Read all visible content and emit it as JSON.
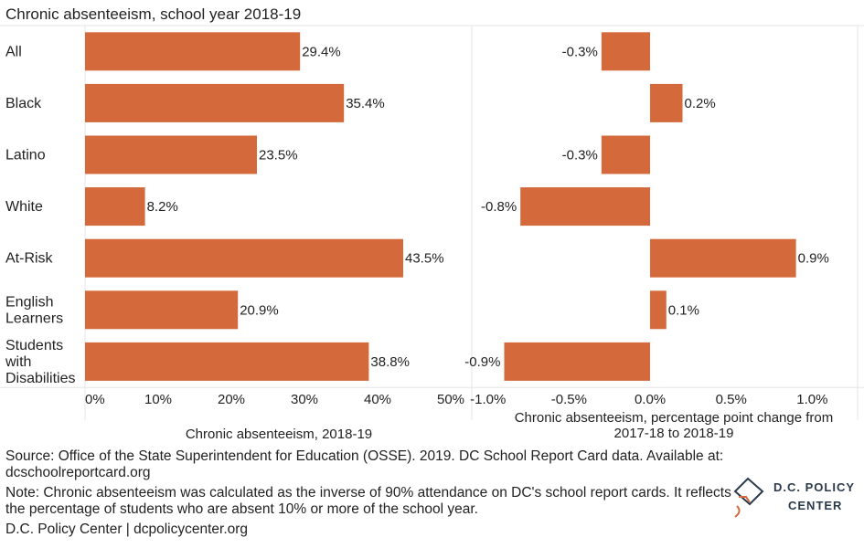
{
  "title": "Chronic absenteeism, school year 2018-19",
  "colors": {
    "bar": "#d4693b",
    "grid": "#e6e6e6",
    "logo": "#2b3a4a",
    "accent": "#d4693b"
  },
  "chart_data": [
    {
      "type": "bar",
      "orientation": "horizontal",
      "categories": [
        "All",
        "Black",
        "Latino",
        "White",
        "At-Risk",
        "English Learners",
        "Students with Disabilities"
      ],
      "category_lines": [
        [
          "All"
        ],
        [
          "Black"
        ],
        [
          "Latino"
        ],
        [
          "White"
        ],
        [
          "At-Risk"
        ],
        [
          "English",
          "Learners"
        ],
        [
          "Students",
          "with",
          "Disabilities"
        ]
      ],
      "values": [
        29.4,
        35.4,
        23.5,
        8.2,
        43.5,
        20.9,
        38.8
      ],
      "value_labels": [
        "29.4%",
        "35.4%",
        "23.5%",
        "8.2%",
        "43.5%",
        "20.9%",
        "38.8%"
      ],
      "xlabel": "Chronic absenteeism, 2018-19",
      "xlim": [
        0,
        50
      ],
      "ticks": [
        0,
        10,
        20,
        30,
        40,
        50
      ],
      "tick_labels": [
        "0%",
        "10%",
        "20%",
        "30%",
        "40%",
        "50%"
      ]
    },
    {
      "type": "bar",
      "orientation": "horizontal",
      "categories": [
        "All",
        "Black",
        "Latino",
        "White",
        "At-Risk",
        "English Learners",
        "Students with Disabilities"
      ],
      "values": [
        -0.3,
        0.2,
        -0.3,
        -0.8,
        0.9,
        0.1,
        -0.9
      ],
      "value_labels": [
        "-0.3%",
        "0.2%",
        "-0.3%",
        "-0.8%",
        "0.9%",
        "0.1%",
        "-0.9%"
      ],
      "xlabel_lines": [
        "Chronic absenteeism, percentage point change from",
        "2017-18 to 2018-19"
      ],
      "xlim": [
        -1.1,
        1.28
      ],
      "ticks": [
        -1.0,
        -0.5,
        0.0,
        0.5,
        1.0
      ],
      "tick_labels": [
        "-1.0%",
        "-0.5%",
        "0.0%",
        "0.5%",
        "1.0%"
      ]
    }
  ],
  "notes": {
    "source": "Source: Office of the State Superintendent for Education (OSSE). 2019. DC School Report Card data. Available at: dcschoolreportcard.org",
    "note": "Note: Chronic absenteeism was calculated as the inverse of 90% attendance on DC's school report cards. It reflects the percentage of students who are absent 10% or more of the school year.",
    "credit": "D.C. Policy Center | dcpolicycenter.org"
  },
  "logo": {
    "line1": "D.C. POLICY",
    "line2": "CENTER"
  }
}
